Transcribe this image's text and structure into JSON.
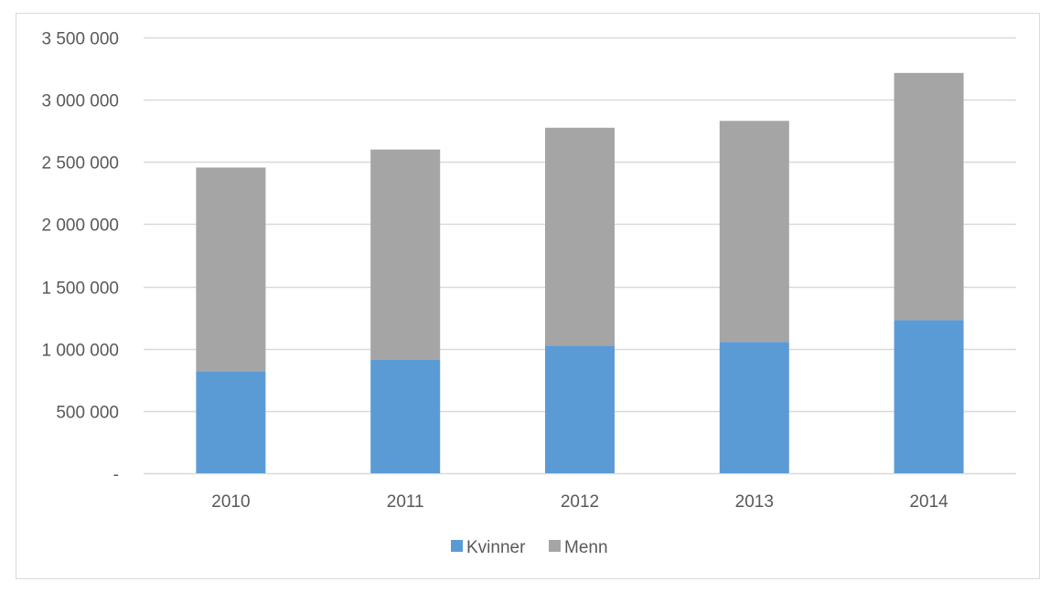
{
  "chart_data": {
    "type": "bar",
    "stacked": true,
    "title": "",
    "xlabel": "",
    "ylabel": "",
    "categories": [
      "2010",
      "2011",
      "2012",
      "2013",
      "2014"
    ],
    "series": [
      {
        "name": "Kvinner",
        "color": "#5b9bd5",
        "values": [
          820000,
          910000,
          1025000,
          1055000,
          1230000
        ]
      },
      {
        "name": "Menn",
        "color": "#a5a5a5",
        "values": [
          1635000,
          1690000,
          1750000,
          1775000,
          1985000
        ]
      }
    ],
    "ylim": [
      0,
      3500000
    ],
    "yticks": [
      0,
      500000,
      1000000,
      1500000,
      2000000,
      2500000,
      3000000,
      3500000
    ],
    "ytick_labels": [
      "-",
      "500 000",
      "1 000 000",
      "1 500 000",
      "2 000 000",
      "2 500 000",
      "3 000 000",
      "3 500 000"
    ],
    "grid": true,
    "legend_position": "bottom",
    "gridline_color": "#d9d9d9"
  }
}
